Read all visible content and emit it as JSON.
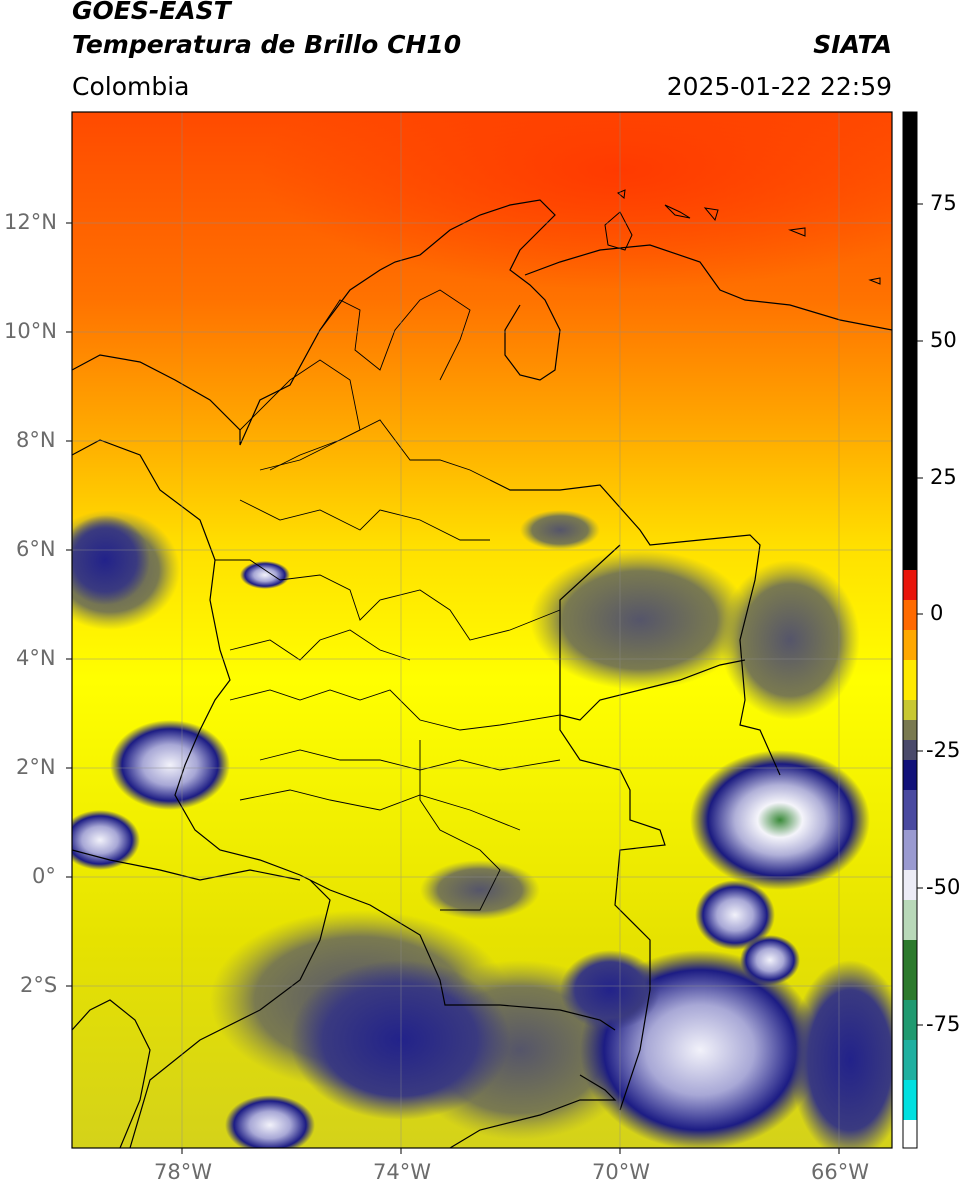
{
  "header": {
    "satellite": "GOES-EAST",
    "product": "Temperatura de Brillo CH10",
    "region": "Colombia",
    "agency": "SIATA",
    "datetime": "2025-01-22 22:59"
  },
  "map": {
    "lat_labels": [
      "12°N",
      "10°N",
      "8°N",
      "6°N",
      "4°N",
      "2°N",
      "0°",
      "2°S"
    ],
    "lon_labels": [
      "78°W",
      "74°W",
      "70°W",
      "66°W"
    ],
    "lat_range": [
      -4.9,
      14.0
    ],
    "lon_range": [
      -80.0,
      -65.0
    ],
    "grid": true
  },
  "colorbar": {
    "ticks": [
      "75",
      "50",
      "25",
      "0",
      "-25",
      "-50",
      "-75"
    ],
    "tick_values": [
      75,
      50,
      25,
      0,
      -25,
      -50,
      -75
    ],
    "range": [
      -92,
      90
    ],
    "colors": {
      "black": "#000000",
      "red": "#e8140a",
      "orange": "#ff8c00",
      "yellow": "#ffff00",
      "olive": "#9a9a3a",
      "gray": "#5a5a6a",
      "navy": "#12127a",
      "lavender": "#c8c8e6",
      "green": "#2c7a2c",
      "teal": "#20b090",
      "cyan": "#00e0e0"
    }
  }
}
